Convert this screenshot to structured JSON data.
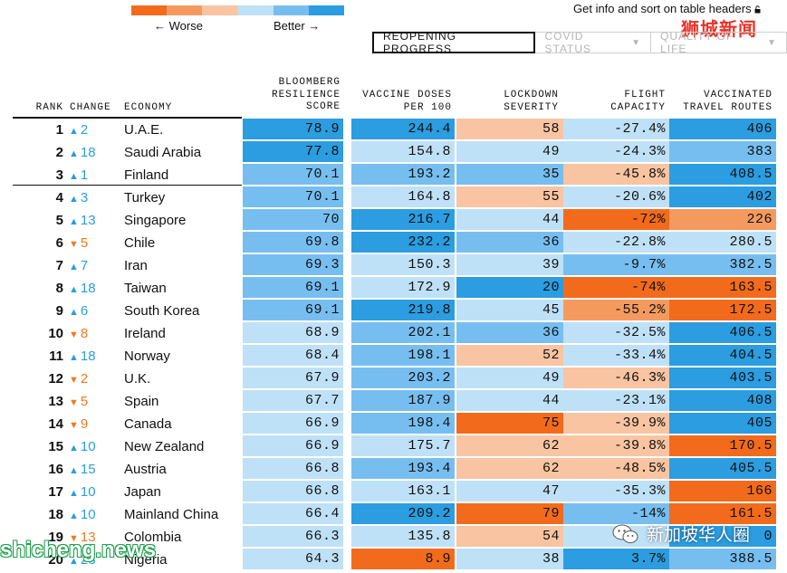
{
  "legend": {
    "worse_label": "← Worse",
    "better_label": "Better →",
    "colors": [
      "#f26b1d",
      "#f59a5f",
      "#f9c4a1",
      "#bfe1f7",
      "#77bef0",
      "#2b9de0"
    ]
  },
  "info": {
    "text": "Get info and sort on table headers"
  },
  "watermark_top": "狮城新闻",
  "tabs": [
    {
      "label": "REOPENING PROGRESS",
      "active": true
    },
    {
      "label": "COVID STATUS",
      "active": false
    },
    {
      "label": "QUALITY OF LIFE",
      "active": false
    }
  ],
  "headers": {
    "rank": "RANK",
    "change": "CHANGE",
    "economy": "ECONOMY",
    "score": [
      "BLOOMBERG",
      "RESILIENCE",
      "SCORE"
    ],
    "vaccine": [
      "VACCINE DOSES",
      "PER 100"
    ],
    "lockdown": [
      "LOCKDOWN",
      "SEVERITY"
    ],
    "flight": [
      "FLIGHT",
      "CAPACITY"
    ],
    "routes": [
      "VACCINATED",
      "TRAVEL ROUTES"
    ]
  },
  "colors": {
    "dark_blue": "#2b9de0",
    "mid_blue": "#77bef0",
    "light_blue": "#bfe1f7",
    "light_orange": "#f9c4a1",
    "mid_orange": "#f59a5f",
    "dark_orange": "#f26b1d"
  },
  "rows": [
    {
      "rank": "1",
      "dir": "up",
      "change": "2",
      "economy": "U.A.E.",
      "score": "78.9",
      "vaccine": "244.4",
      "lockdown": "58",
      "flight": "-27.4%",
      "routes": "406",
      "c": [
        "dark_blue",
        "dark_blue",
        "light_orange",
        "light_blue",
        "dark_blue"
      ]
    },
    {
      "rank": "2",
      "dir": "up",
      "change": "18",
      "economy": "Saudi Arabia",
      "score": "77.8",
      "vaccine": "154.8",
      "lockdown": "49",
      "flight": "-24.3%",
      "routes": "383",
      "c": [
        "dark_blue",
        "light_blue",
        "light_blue",
        "light_blue",
        "mid_blue"
      ]
    },
    {
      "rank": "3",
      "dir": "up",
      "change": "1",
      "economy": "Finland",
      "score": "70.1",
      "vaccine": "193.2",
      "lockdown": "35",
      "flight": "-45.8%",
      "routes": "408.5",
      "c": [
        "mid_blue",
        "mid_blue",
        "mid_blue",
        "light_orange",
        "dark_blue"
      ]
    },
    {
      "rank": "4",
      "dir": "up",
      "change": "3",
      "economy": "Turkey",
      "score": "70.1",
      "vaccine": "164.8",
      "lockdown": "55",
      "flight": "-20.6%",
      "routes": "402",
      "c": [
        "mid_blue",
        "light_blue",
        "light_orange",
        "light_blue",
        "dark_blue"
      ]
    },
    {
      "rank": "5",
      "dir": "up",
      "change": "13",
      "economy": "Singapore",
      "score": "70",
      "vaccine": "216.7",
      "lockdown": "44",
      "flight": "-72%",
      "routes": "226",
      "c": [
        "mid_blue",
        "dark_blue",
        "light_blue",
        "dark_orange",
        "mid_orange"
      ]
    },
    {
      "rank": "6",
      "dir": "down",
      "change": "5",
      "economy": "Chile",
      "score": "69.8",
      "vaccine": "232.2",
      "lockdown": "36",
      "flight": "-22.8%",
      "routes": "280.5",
      "c": [
        "mid_blue",
        "dark_blue",
        "mid_blue",
        "light_blue",
        "light_blue"
      ]
    },
    {
      "rank": "7",
      "dir": "up",
      "change": "7",
      "economy": "Iran",
      "score": "69.3",
      "vaccine": "150.3",
      "lockdown": "39",
      "flight": "-9.7%",
      "routes": "382.5",
      "c": [
        "mid_blue",
        "light_blue",
        "light_blue",
        "mid_blue",
        "mid_blue"
      ]
    },
    {
      "rank": "8",
      "dir": "up",
      "change": "18",
      "economy": "Taiwan",
      "score": "69.1",
      "vaccine": "172.9",
      "lockdown": "20",
      "flight": "-74%",
      "routes": "163.5",
      "c": [
        "mid_blue",
        "light_blue",
        "dark_blue",
        "dark_orange",
        "dark_orange"
      ]
    },
    {
      "rank": "9",
      "dir": "up",
      "change": "6",
      "economy": "South Korea",
      "score": "69.1",
      "vaccine": "219.8",
      "lockdown": "45",
      "flight": "-55.2%",
      "routes": "172.5",
      "c": [
        "mid_blue",
        "dark_blue",
        "light_blue",
        "mid_orange",
        "dark_orange"
      ]
    },
    {
      "rank": "10",
      "dir": "down",
      "change": "8",
      "economy": "Ireland",
      "score": "68.9",
      "vaccine": "202.1",
      "lockdown": "36",
      "flight": "-32.5%",
      "routes": "406.5",
      "c": [
        "light_blue",
        "mid_blue",
        "mid_blue",
        "light_blue",
        "dark_blue"
      ]
    },
    {
      "rank": "11",
      "dir": "up",
      "change": "18",
      "economy": "Norway",
      "score": "68.4",
      "vaccine": "198.1",
      "lockdown": "52",
      "flight": "-33.4%",
      "routes": "404.5",
      "c": [
        "light_blue",
        "mid_blue",
        "light_orange",
        "light_blue",
        "dark_blue"
      ]
    },
    {
      "rank": "12",
      "dir": "down",
      "change": "2",
      "economy": "U.K.",
      "score": "67.9",
      "vaccine": "203.2",
      "lockdown": "49",
      "flight": "-46.3%",
      "routes": "403.5",
      "c": [
        "light_blue",
        "mid_blue",
        "light_blue",
        "light_orange",
        "dark_blue"
      ]
    },
    {
      "rank": "13",
      "dir": "down",
      "change": "5",
      "economy": "Spain",
      "score": "67.7",
      "vaccine": "187.9",
      "lockdown": "44",
      "flight": "-23.1%",
      "routes": "408",
      "c": [
        "light_blue",
        "mid_blue",
        "light_blue",
        "light_blue",
        "dark_blue"
      ]
    },
    {
      "rank": "14",
      "dir": "down",
      "change": "9",
      "economy": "Canada",
      "score": "66.9",
      "vaccine": "198.4",
      "lockdown": "75",
      "flight": "-39.9%",
      "routes": "405",
      "c": [
        "light_blue",
        "mid_blue",
        "dark_orange",
        "light_orange",
        "dark_blue"
      ]
    },
    {
      "rank": "15",
      "dir": "up",
      "change": "10",
      "economy": "New Zealand",
      "score": "66.9",
      "vaccine": "175.7",
      "lockdown": "62",
      "flight": "-39.8%",
      "routes": "170.5",
      "c": [
        "light_blue",
        "light_blue",
        "light_orange",
        "light_orange",
        "dark_orange"
      ]
    },
    {
      "rank": "16",
      "dir": "up",
      "change": "15",
      "economy": "Austria",
      "score": "66.8",
      "vaccine": "193.4",
      "lockdown": "62",
      "flight": "-48.5%",
      "routes": "405.5",
      "c": [
        "light_blue",
        "mid_blue",
        "light_orange",
        "light_orange",
        "dark_blue"
      ]
    },
    {
      "rank": "17",
      "dir": "up",
      "change": "10",
      "economy": "Japan",
      "score": "66.8",
      "vaccine": "163.1",
      "lockdown": "47",
      "flight": "-35.3%",
      "routes": "166",
      "c": [
        "light_blue",
        "light_blue",
        "light_blue",
        "light_blue",
        "dark_orange"
      ]
    },
    {
      "rank": "18",
      "dir": "up",
      "change": "10",
      "economy": "Mainland China",
      "score": "66.4",
      "vaccine": "209.2",
      "lockdown": "79",
      "flight": "-14%",
      "routes": "161.5",
      "c": [
        "light_blue",
        "dark_blue",
        "dark_orange",
        "mid_blue",
        "dark_orange"
      ]
    },
    {
      "rank": "19",
      "dir": "down",
      "change": "13",
      "economy": "Colombia",
      "score": "66.3",
      "vaccine": "135.8",
      "lockdown": "54",
      "flight": "",
      "routes": "0",
      "c": [
        "light_blue",
        "light_blue",
        "light_orange",
        "light_blue",
        "dark_blue"
      ]
    },
    {
      "rank": "20",
      "dir": "up",
      "change": "23",
      "economy": "Nigeria",
      "score": "64.3",
      "vaccine": "8.9",
      "lockdown": "38",
      "flight": "3.7%",
      "routes": "388.5",
      "c": [
        "light_blue",
        "dark_orange",
        "light_blue",
        "dark_blue",
        "mid_blue"
      ]
    }
  ],
  "watermark_bottom": "shicheng.news",
  "wechat_text": "新加坡华人圈"
}
